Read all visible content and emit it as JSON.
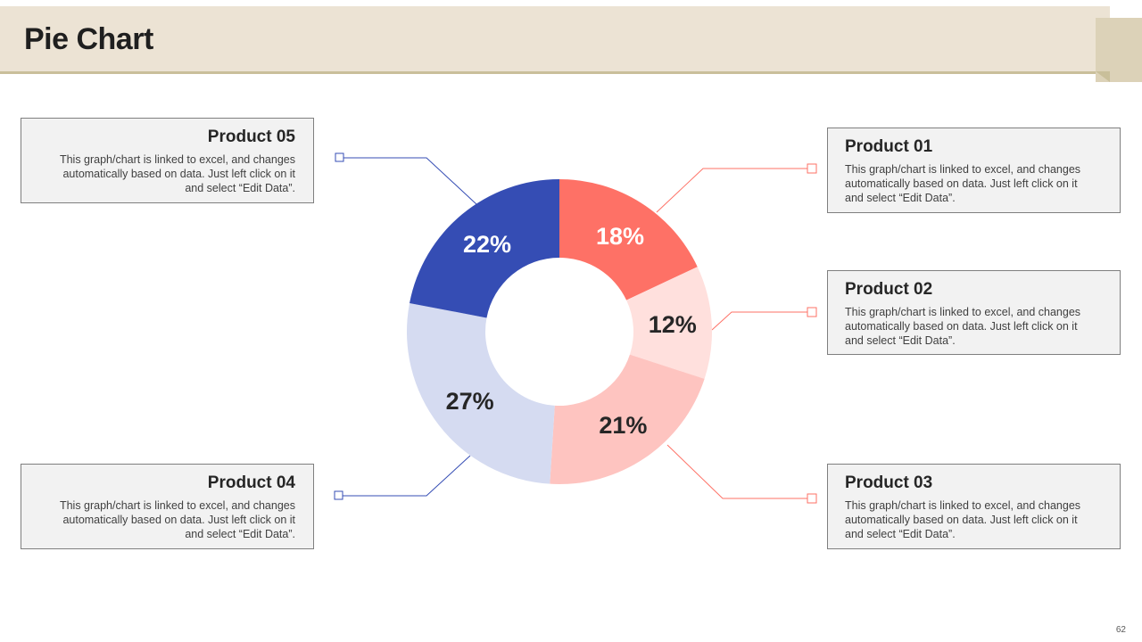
{
  "header": {
    "title": "Pie Chart"
  },
  "page_number": "62",
  "description": "This graph/chart is linked to excel, and changes automatically based on data. Just left click on it and select “Edit Data”.",
  "chart_data": {
    "type": "pie",
    "style": "donut",
    "title": "Pie Chart",
    "start_angle_deg": 0,
    "direction": "clockwise",
    "slices": [
      {
        "name": "Product 01",
        "value": 18,
        "label": "18%",
        "color": "#fe7166",
        "label_color": "#ffffff"
      },
      {
        "name": "Product 02",
        "value": 12,
        "label": "12%",
        "color": "#ffe0dd",
        "label_color": "#262626"
      },
      {
        "name": "Product 03",
        "value": 21,
        "label": "21%",
        "color": "#fec4c0",
        "label_color": "#262626"
      },
      {
        "name": "Product 04",
        "value": 27,
        "label": "27%",
        "color": "#d5dbf1",
        "label_color": "#262626"
      },
      {
        "name": "Product 05",
        "value": 22,
        "label": "22%",
        "color": "#354db4",
        "label_color": "#ffffff"
      }
    ],
    "legend": [
      {
        "title": "Product 01",
        "color": "#fe7166",
        "placement": "right-top"
      },
      {
        "title": "Product 02",
        "color": "#fe7166",
        "placement": "right-middle"
      },
      {
        "title": "Product 03",
        "color": "#fe7166",
        "placement": "right-bottom"
      },
      {
        "title": "Product 04",
        "color": "#354db4",
        "placement": "left-bottom"
      },
      {
        "title": "Product 05",
        "color": "#354db4",
        "placement": "left-top"
      }
    ]
  }
}
